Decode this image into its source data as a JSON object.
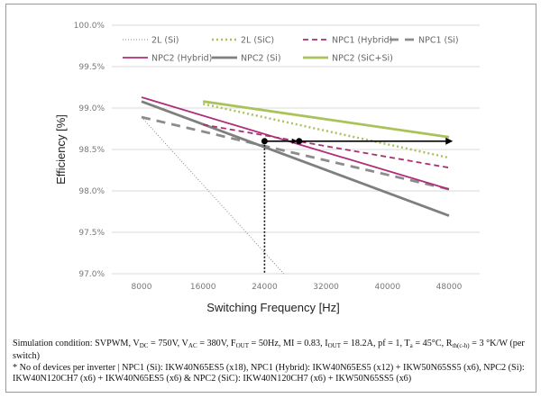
{
  "chart_data": {
    "type": "line",
    "title": "",
    "xlabel": "Switching  Frequency [Hz]",
    "ylabel": "Efficiency [%]",
    "xlim": [
      8000,
      48000
    ],
    "ylim": [
      97.0,
      100.0
    ],
    "x_ticks": [
      "8000",
      "16000",
      "24000",
      "32000",
      "40000",
      "48000"
    ],
    "x_tick_values": [
      8000,
      16000,
      24000,
      32000,
      40000,
      48000
    ],
    "y_ticks": [
      "97.0%",
      "97.5%",
      "98.0%",
      "98.5%",
      "99.0%",
      "99.5%",
      "100.0%"
    ],
    "y_tick_values": [
      97.0,
      97.5,
      98.0,
      98.5,
      99.0,
      99.5,
      100.0
    ],
    "grid": "horizontal",
    "legend_position": "top",
    "series": [
      {
        "name": "2L (Si)",
        "color": "#888888",
        "style": "dotted-thin",
        "x": [
          8000,
          26500
        ],
        "y": [
          98.89,
          97.0
        ]
      },
      {
        "name": "2L (SiC)",
        "color": "#a9c35a",
        "style": "dotted-thick",
        "x": [
          16000,
          48000
        ],
        "y": [
          99.05,
          98.4
        ]
      },
      {
        "name": "NPC1 (Hybrid)",
        "color": "#a8306e",
        "style": "dashed",
        "x": [
          16000,
          48000
        ],
        "y": [
          98.8,
          98.28
        ]
      },
      {
        "name": "NPC1 (Si)",
        "color": "#8c8c8c",
        "style": "long-dashed",
        "x": [
          8000,
          48000
        ],
        "y": [
          98.89,
          98.02
        ]
      },
      {
        "name": "NPC2 (Hybrid)",
        "color": "#b02c7c",
        "style": "solid",
        "x": [
          8000,
          48000
        ],
        "y": [
          99.13,
          98.02
        ]
      },
      {
        "name": "NPC2 (Si)",
        "color": "#7f7f7f",
        "style": "solid-thick",
        "x": [
          8000,
          48000
        ],
        "y": [
          99.08,
          97.7
        ]
      },
      {
        "name": "NPC2 (SiC+Si)",
        "color": "#a9c35a",
        "style": "solid-thick",
        "x": [
          16000,
          48000
        ],
        "y": [
          99.08,
          98.65
        ]
      }
    ],
    "annotations": {
      "markers": [
        {
          "x": 24000,
          "y": 98.6
        },
        {
          "x": 28500,
          "y": 98.6
        }
      ],
      "arrow": {
        "from_x": 24000,
        "to_x": 48500,
        "y": 98.6
      },
      "vertical_guide": {
        "x": 24000,
        "from_y": 98.6,
        "to_y": 97.0
      }
    }
  },
  "caption": {
    "line1_prefix": "Simulation condition: SVPWM, V",
    "vdc_sub": "DC",
    "vdc_val": " = 750V, V",
    "vac_sub": "AC",
    "vac_val": " = 380V, F",
    "fout_sub": "OUT",
    "fout_val": " = 50Hz, MI = 0.83, I",
    "iout_sub": "OUT",
    "iout_val": " = 18.2A, pf = 1, T",
    "ta_sub": "a",
    "ta_val": " = 45°C, R",
    "rth_sub": "th(c-h)",
    "rth_val": " = 3 °K/W (per switch)",
    "line2": "* No of devices per inverter | NPC1 (Si): IKW40N65ES5 (x18), NPC1 (Hybrid): IKW40N65ES5 (x12) + IKW50N65SS5 (x6), NPC2 (Si): IKW40N120CH7 (x6) + IKW40N65ES5 (x6) & NPC2 (SiC): IKW40N120CH7 (x6) + IKW50N65SS5 (x6)"
  }
}
